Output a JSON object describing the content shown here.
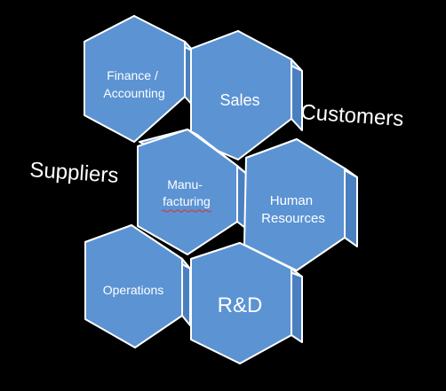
{
  "hexagons": {
    "finance": [
      "Finance /",
      "Accounting"
    ],
    "sales": [
      "Sales"
    ],
    "manufacturing": [
      "Manu-",
      "facturing"
    ],
    "human_resources": [
      "Human",
      "Resources"
    ],
    "operations": [
      "Operations"
    ],
    "rnd": [
      "R&D"
    ]
  },
  "side_labels": {
    "customers": "Customers",
    "suppliers": "Suppliers"
  },
  "colors": {
    "background": "#000000",
    "hex_fill": "#5b93d3",
    "hex_side": "#4a80c0",
    "outline": "#ffffff",
    "text": "#ffffff",
    "spellcheck_underline": "#e03030"
  }
}
